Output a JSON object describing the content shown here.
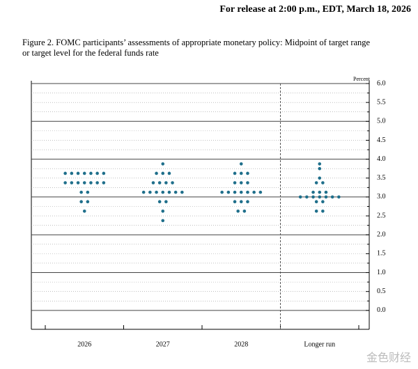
{
  "header": "For release at 2:00 p.m., EDT, March 18, 2026",
  "watermark": "金色财经",
  "chart_data": {
    "type": "dot",
    "title": "Figure 2. FOMC participants’ assessments of appropriate monetary policy: Midpoint of target range or target level for the federal funds rate",
    "y_label": "Percent",
    "categories": [
      "2026",
      "2027",
      "2028",
      "Longer run"
    ],
    "values": [
      [
        3.625,
        3.625,
        3.625,
        3.625,
        3.625,
        3.625,
        3.625,
        3.375,
        3.375,
        3.375,
        3.375,
        3.375,
        3.375,
        3.375,
        3.125,
        3.125,
        2.875,
        2.875,
        2.625
      ],
      [
        3.875,
        3.625,
        3.625,
        3.625,
        3.375,
        3.375,
        3.375,
        3.375,
        3.125,
        3.125,
        3.125,
        3.125,
        3.125,
        3.125,
        3.125,
        2.875,
        2.875,
        2.625,
        2.375
      ],
      [
        3.875,
        3.625,
        3.625,
        3.625,
        3.375,
        3.375,
        3.375,
        3.125,
        3.125,
        3.125,
        3.125,
        3.125,
        3.125,
        3.125,
        2.875,
        2.875,
        2.875,
        2.625,
        2.625
      ],
      [
        3.875,
        3.75,
        3.5,
        3.375,
        3.375,
        3.125,
        3.125,
        3.125,
        3.0,
        3.0,
        3.0,
        3.0,
        3.0,
        3.0,
        3.0,
        2.875,
        2.875,
        2.625,
        2.625
      ]
    ],
    "color": "#1f6f8b",
    "ylim": [
      -0.5,
      6.0
    ],
    "yticks": [
      {
        "value": 0,
        "label": "0.0"
      },
      {
        "value": 0.5,
        "label": "0.5"
      },
      {
        "value": 1,
        "label": "1.0"
      },
      {
        "value": 1.5,
        "label": "1.5"
      },
      {
        "value": 2,
        "label": "2.0"
      },
      {
        "value": 2.5,
        "label": "2.5"
      },
      {
        "value": 3,
        "label": "3.0"
      },
      {
        "value": 3.5,
        "label": "3.5"
      },
      {
        "value": 4,
        "label": "4.0"
      },
      {
        "value": 4.5,
        "label": "4.5"
      },
      {
        "value": 5,
        "label": "5.0"
      },
      {
        "value": 5.5,
        "label": "5.5"
      },
      {
        "value": 6,
        "label": "6.0"
      }
    ],
    "minor_yticks": [
      0.25,
      0.75,
      1.25,
      1.75,
      2.25,
      2.75,
      3.25,
      3.75,
      4.25,
      4.75,
      5.25,
      5.75
    ],
    "grid": true
  }
}
